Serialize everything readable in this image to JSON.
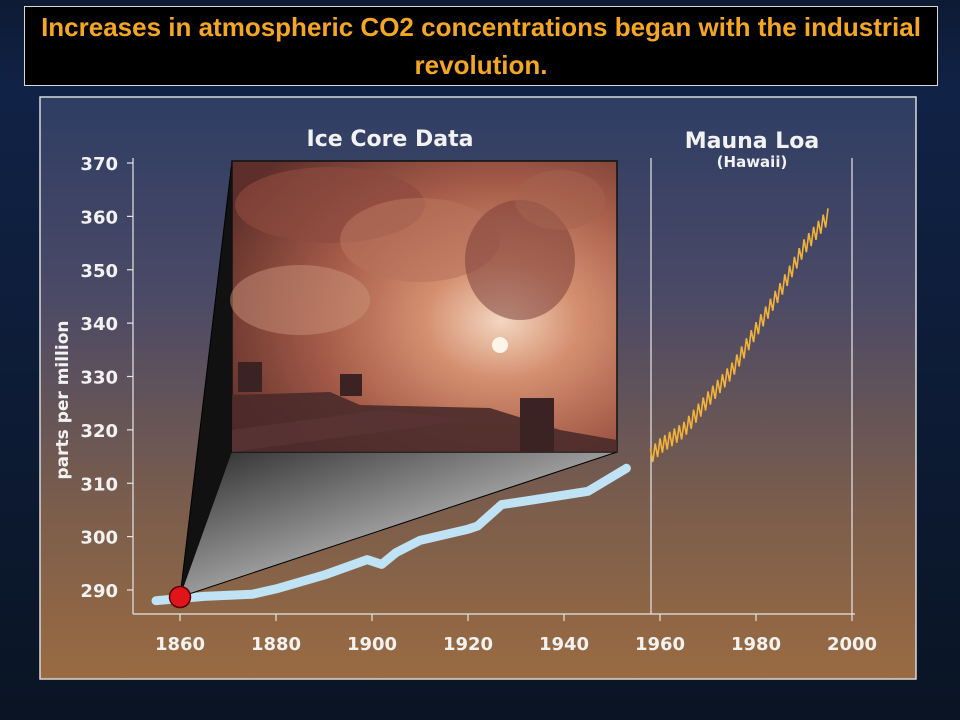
{
  "slide": {
    "title": "Increases in atmospheric CO2 concentrations began with the industrial revolution."
  },
  "colors": {
    "title_text": "#f5a623",
    "ice_core_line": "#bfe3f5",
    "mauna_loa_line": "#f2b23a",
    "marker": "#e0151b"
  },
  "photo": {
    "description_icon": "smokestack-photo",
    "marker_icon": "red-dot-icon"
  },
  "chart_data": {
    "type": "line",
    "title": "",
    "ylabel": "parts per million",
    "xlabel": "",
    "xlim": [
      1850,
      2000
    ],
    "ylim": [
      285,
      370
    ],
    "x_ticks": [
      1860,
      1880,
      1900,
      1920,
      1940,
      1960,
      1980,
      2000
    ],
    "y_ticks": [
      290,
      300,
      310,
      320,
      330,
      340,
      350,
      360,
      370
    ],
    "panel_labels": {
      "ice_core": "Ice Core Data",
      "mauna_loa": "Mauna Loa",
      "mauna_loa_sub": "(Hawaii)"
    },
    "series": [
      {
        "name": "Ice Core Data",
        "x": [
          1855,
          1865,
          1875,
          1880,
          1890,
          1899,
          1902,
          1905,
          1910,
          1920,
          1922,
          1927,
          1933,
          1945,
          1953
        ],
        "y": [
          288.0,
          288.8,
          289.2,
          290.2,
          292.8,
          295.7,
          294.8,
          297.0,
          299.3,
          301.4,
          302.0,
          306.0,
          306.8,
          308.5,
          312.8
        ]
      },
      {
        "name": "Mauna Loa",
        "x": [
          1958,
          1960,
          1965,
          1970,
          1975,
          1980,
          1985,
          1990,
          1995
        ],
        "y": [
          315.0,
          316.9,
          320.0,
          325.7,
          331.1,
          338.7,
          346.0,
          354.2,
          360.0
        ],
        "seasonal_amplitude": 3.0
      }
    ]
  }
}
